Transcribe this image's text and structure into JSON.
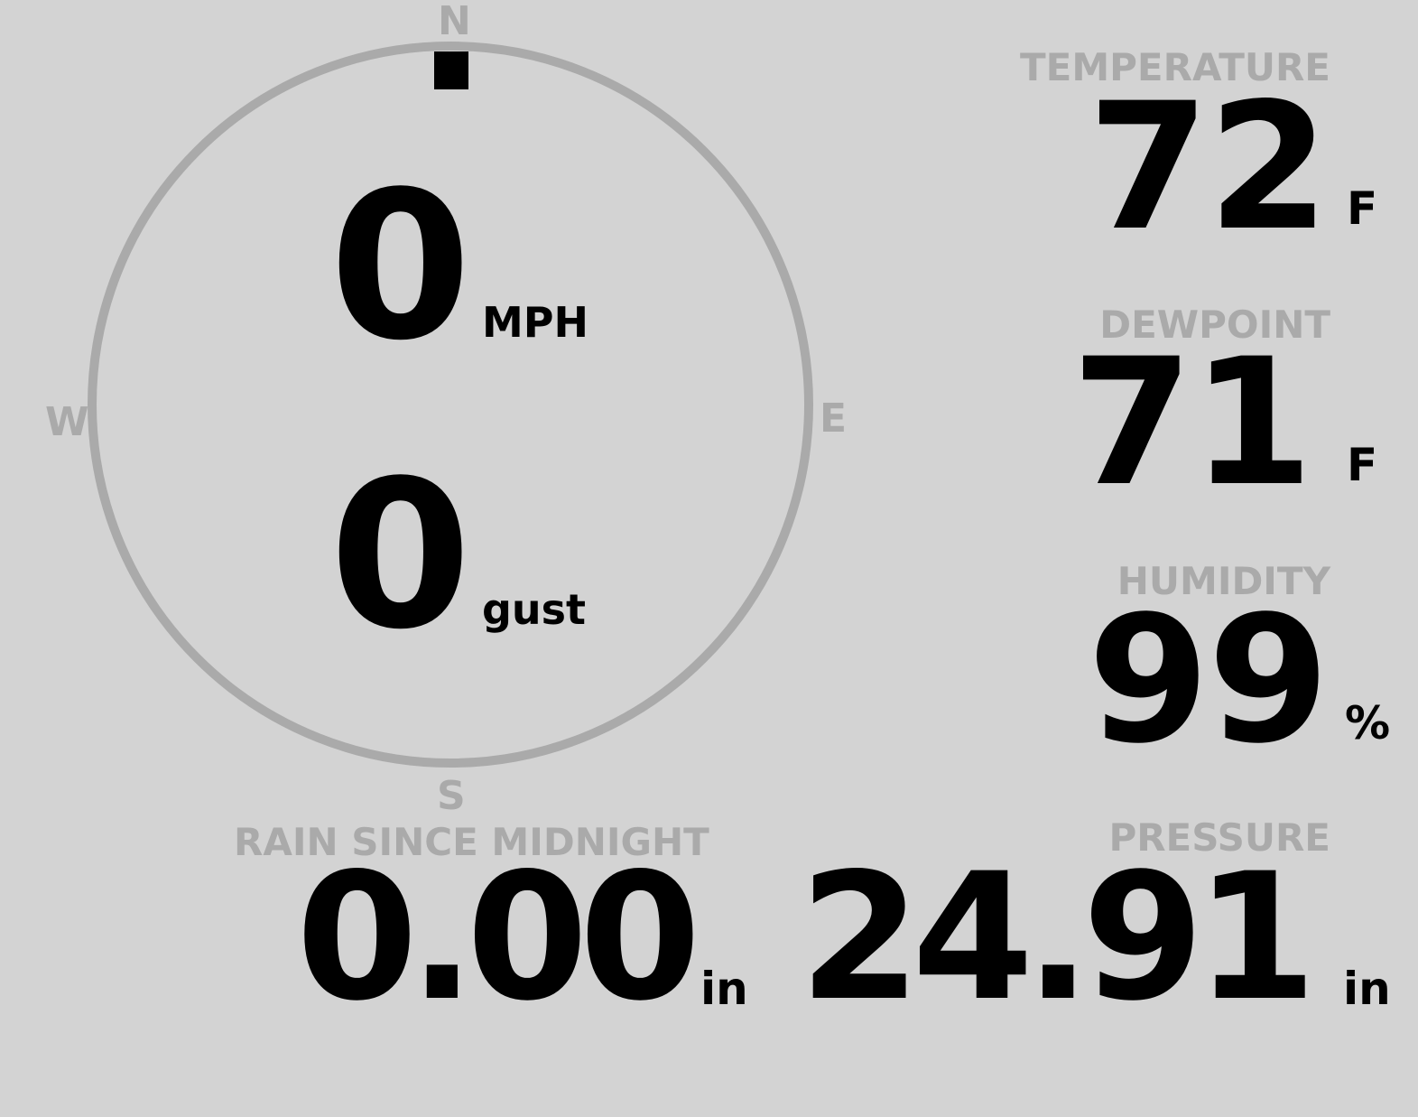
{
  "colors": {
    "background": "#d3d3d3",
    "label": "#aaaaaa",
    "value": "#000000"
  },
  "wind": {
    "compass": {
      "n": "N",
      "e": "E",
      "s": "S",
      "w": "W",
      "direction_deg": 0
    },
    "speed": "0",
    "speed_unit": "MPH",
    "gust": "0",
    "gust_unit": "gust"
  },
  "temperature": {
    "label": "TEMPERATURE",
    "value": "72",
    "unit": "F"
  },
  "dewpoint": {
    "label": "DEWPOINT",
    "value": "71",
    "unit": "F"
  },
  "humidity": {
    "label": "HUMIDITY",
    "value": "99",
    "unit": "%"
  },
  "rain": {
    "label": "RAIN SINCE MIDNIGHT",
    "value": "0.00",
    "unit": "in"
  },
  "pressure": {
    "label": "PRESSURE",
    "value": "24.91",
    "unit": "in"
  }
}
